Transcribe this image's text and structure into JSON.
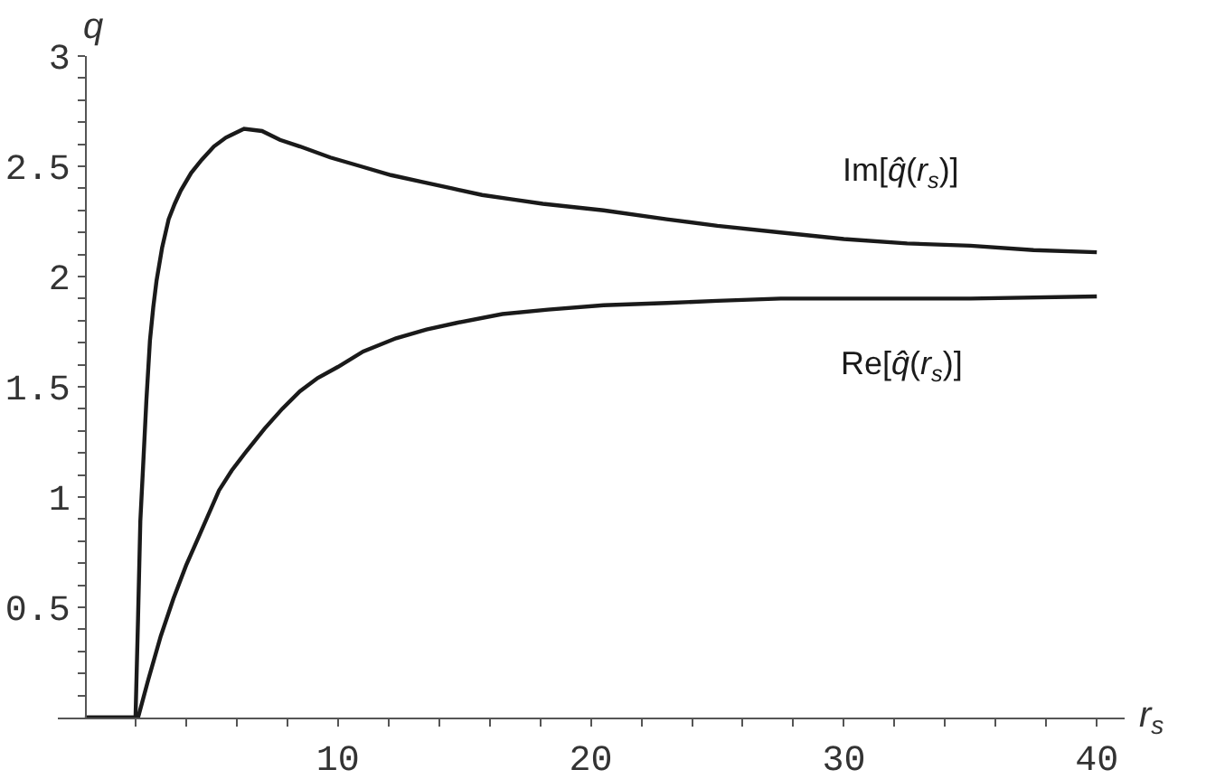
{
  "chart_data": {
    "type": "line",
    "xlabel": "r$_{s}$",
    "ylabel": "q",
    "line_style": "solid",
    "xlim": [
      -1.07,
      41.1
    ],
    "ylim": [
      0,
      3
    ],
    "xticks": [
      {
        "value": 2,
        "label": null
      },
      {
        "value": 4,
        "label": null
      },
      {
        "value": 6,
        "label": null
      },
      {
        "value": 8,
        "label": null
      },
      10,
      {
        "value": 12,
        "label": null
      },
      {
        "value": 14,
        "label": null
      },
      {
        "value": 16,
        "label": null
      },
      {
        "value": 18,
        "label": null
      },
      20,
      {
        "value": 22,
        "label": null
      },
      {
        "value": 24,
        "label": null
      },
      {
        "value": 26,
        "label": null
      },
      {
        "value": 28,
        "label": null
      },
      30,
      {
        "value": 32,
        "label": null
      },
      {
        "value": 34,
        "label": null
      },
      {
        "value": 36,
        "label": null
      },
      {
        "value": 38,
        "label": null
      },
      40
    ],
    "yticks": [
      {
        "value": 0.1,
        "label": null
      },
      {
        "value": 0.2,
        "label": null
      },
      {
        "value": 0.3,
        "label": null
      },
      {
        "value": 0.4,
        "label": null
      },
      0.5,
      {
        "value": 0.6,
        "label": null
      },
      {
        "value": 0.7,
        "label": null
      },
      {
        "value": 0.8,
        "label": null
      },
      {
        "value": 0.9,
        "label": null
      },
      1,
      {
        "value": 1.1,
        "label": null
      },
      {
        "value": 1.2,
        "label": null
      },
      {
        "value": 1.3,
        "label": null
      },
      {
        "value": 1.4,
        "label": null
      },
      1.5,
      {
        "value": 1.6,
        "label": null
      },
      {
        "value": 1.7,
        "label": null
      },
      {
        "value": 1.8,
        "label": null
      },
      {
        "value": 1.9,
        "label": null
      },
      2,
      {
        "value": 2.1,
        "label": null
      },
      {
        "value": 2.2,
        "label": null
      },
      {
        "value": 2.3,
        "label": null
      },
      {
        "value": 2.4,
        "label": null
      },
      2.5,
      {
        "value": 2.6,
        "label": null
      },
      {
        "value": 2.7,
        "label": null
      },
      {
        "value": 2.8,
        "label": null
      },
      {
        "value": 2.9,
        "label": null
      },
      3
    ],
    "series": [
      {
        "name": "Im[q̂(r$_{s}$)]",
        "color": "#1a1a1a",
        "x": [
          0,
          2.0,
          2.1,
          2.19,
          2.3,
          2.43,
          2.57,
          2.7,
          2.83,
          3.05,
          3.31,
          3.55,
          3.79,
          4.2,
          4.62,
          5.1,
          5.57,
          6.29,
          7.0,
          7.71,
          8.5,
          9.7,
          10.9,
          12.1,
          13.3,
          14.5,
          15.7,
          16.9,
          18.1,
          20.5,
          23.0,
          25.0,
          27.5,
          30.0,
          32.5,
          35.0,
          37.5,
          40.0
        ],
        "values": [
          0,
          0,
          0.45,
          0.89,
          1.14,
          1.44,
          1.71,
          1.86,
          1.98,
          2.13,
          2.26,
          2.33,
          2.39,
          2.47,
          2.53,
          2.59,
          2.63,
          2.67,
          2.66,
          2.62,
          2.59,
          2.54,
          2.5,
          2.46,
          2.43,
          2.4,
          2.37,
          2.35,
          2.33,
          2.3,
          2.26,
          2.23,
          2.2,
          2.17,
          2.15,
          2.14,
          2.12,
          2.11
        ]
      },
      {
        "name": "Re[q̂(r$_{s}$)]",
        "color": "#1a1a1a",
        "x": [
          0,
          2.1,
          2.5,
          3.0,
          3.5,
          4.0,
          4.5,
          5.3,
          5.8,
          6.4,
          7.1,
          7.8,
          8.5,
          9.2,
          10.0,
          11.0,
          12.3,
          13.5,
          14.7,
          16.5,
          18.3,
          20.5,
          23.0,
          25.0,
          27.5,
          30.0,
          35.0,
          40.0
        ],
        "values": [
          0,
          0,
          0.17,
          0.37,
          0.54,
          0.69,
          0.82,
          1.03,
          1.12,
          1.21,
          1.31,
          1.4,
          1.48,
          1.54,
          1.59,
          1.66,
          1.72,
          1.76,
          1.79,
          1.83,
          1.85,
          1.87,
          1.88,
          1.89,
          1.9,
          1.9,
          1.9,
          1.91
        ]
      }
    ]
  }
}
